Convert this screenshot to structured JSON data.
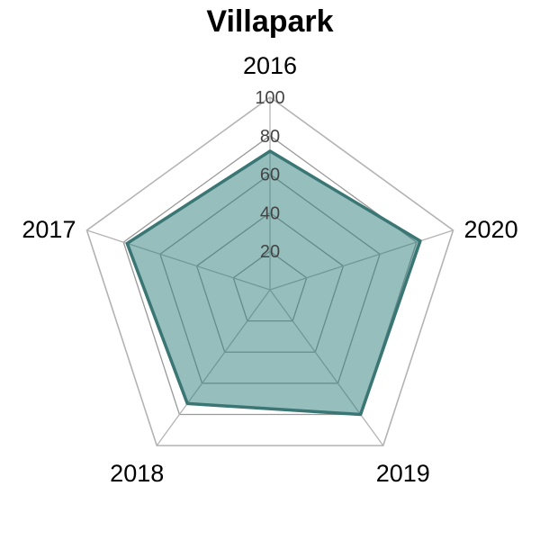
{
  "chart_data": {
    "type": "radar",
    "title": "Villapark",
    "categories": [
      "2016",
      "2017",
      "2018",
      "2019",
      "2020"
    ],
    "series": [
      {
        "values": [
          72,
          78,
          73,
          80,
          82
        ]
      }
    ],
    "rlim": [
      0,
      100
    ],
    "rticks": [
      20,
      40,
      60,
      80,
      100
    ],
    "grid": true,
    "colors": {
      "fill": "#2e7d7b",
      "stroke": "#3a7674",
      "grid": "#999999",
      "outer_grid": "#b3b3b3"
    }
  }
}
